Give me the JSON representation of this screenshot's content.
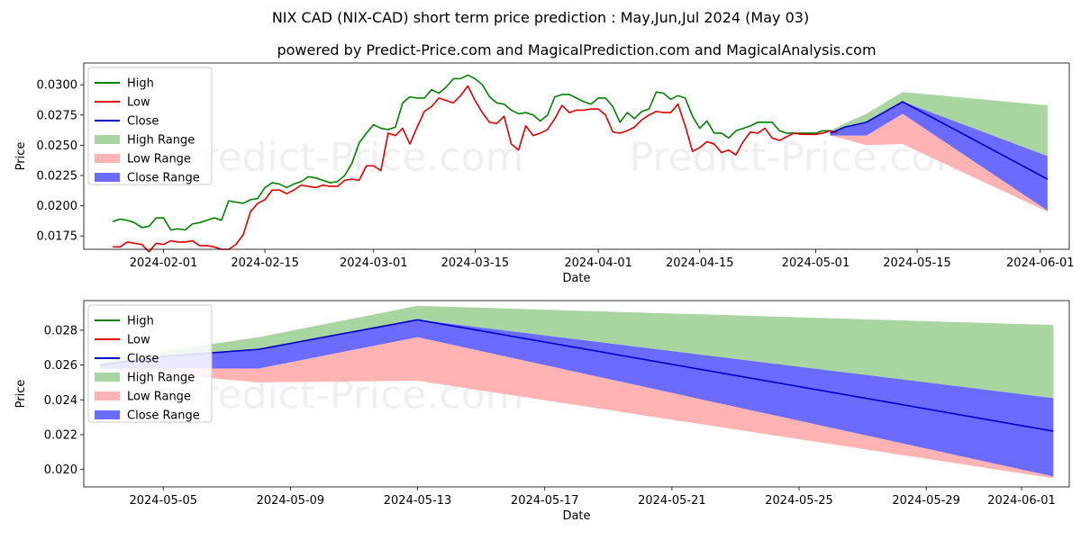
{
  "title": "NIX CAD (NIX-CAD) short term price prediction : May,Jun,Jul 2024 (May 03)",
  "subtitle": "powered by Predict-Price.com and MagicalPrediction.com and MagicalAnalysis.com",
  "watermark": "Predict-Price.com",
  "colors": {
    "high": "#008000",
    "low": "#e00000",
    "close": "#0000cc",
    "high_range": "#a8d5a0",
    "low_range": "#ffb3b3",
    "close_range": "#6b6bff"
  },
  "chart_data": [
    {
      "type": "line",
      "xlabel": "Date",
      "ylabel": "Price",
      "xlim": [
        "2024-01-21",
        "2024-06-05"
      ],
      "ylim": [
        0.0164,
        0.0318
      ],
      "x_ticks": [
        "2024-02-01",
        "2024-02-15",
        "2024-03-01",
        "2024-03-15",
        "2024-04-01",
        "2024-04-15",
        "2024-05-01",
        "2024-05-15",
        "2024-06-01"
      ],
      "y_ticks": [
        "0.0175",
        "0.0200",
        "0.0225",
        "0.0250",
        "0.0275",
        "0.0300"
      ],
      "legend": [
        "High",
        "Low",
        "Close",
        "High Range",
        "Low Range",
        "Close Range"
      ],
      "legend_position": "top-left",
      "history_start": "2024-01-25",
      "high": [
        0.0187,
        0.0189,
        0.0188,
        0.0186,
        0.0182,
        0.0183,
        0.019,
        0.019,
        0.018,
        0.0181,
        0.018,
        0.0185,
        0.0186,
        0.0188,
        0.019,
        0.0188,
        0.0204,
        0.0203,
        0.0202,
        0.0205,
        0.0206,
        0.0215,
        0.0219,
        0.0218,
        0.0215,
        0.0218,
        0.022,
        0.0224,
        0.0223,
        0.0221,
        0.0219,
        0.022,
        0.0225,
        0.0235,
        0.0252,
        0.026,
        0.0267,
        0.0264,
        0.0263,
        0.0265,
        0.0285,
        0.029,
        0.0289,
        0.0289,
        0.0296,
        0.0293,
        0.0298,
        0.0305,
        0.0305,
        0.0308,
        0.0305,
        0.03,
        0.029,
        0.0285,
        0.0284,
        0.0279,
        0.0276,
        0.0277,
        0.0275,
        0.027,
        0.0275,
        0.029,
        0.0292,
        0.0292,
        0.0289,
        0.0286,
        0.0284,
        0.0289,
        0.0289,
        0.0282,
        0.0269,
        0.0277,
        0.0272,
        0.0278,
        0.028,
        0.0294,
        0.0293,
        0.0288,
        0.0291,
        0.0289,
        0.0274,
        0.0264,
        0.027,
        0.026,
        0.026,
        0.0256,
        0.0262,
        0.0264,
        0.0266,
        0.0269,
        0.0269,
        0.0269,
        0.0262,
        0.026,
        0.026,
        0.026,
        0.026,
        0.026,
        0.0262,
        0.0262,
        0.026
      ],
      "low": [
        0.0166,
        0.0166,
        0.017,
        0.0169,
        0.0168,
        0.0162,
        0.0169,
        0.0168,
        0.0171,
        0.017,
        0.017,
        0.0171,
        0.0167,
        0.0167,
        0.0166,
        0.0164,
        0.0164,
        0.0168,
        0.0176,
        0.0195,
        0.0202,
        0.0205,
        0.0213,
        0.0213,
        0.021,
        0.0213,
        0.0217,
        0.0216,
        0.0215,
        0.0217,
        0.0216,
        0.0216,
        0.0221,
        0.0222,
        0.0221,
        0.0233,
        0.0233,
        0.0229,
        0.026,
        0.0258,
        0.0264,
        0.0251,
        0.0265,
        0.0278,
        0.0282,
        0.0289,
        0.0287,
        0.0285,
        0.0291,
        0.0299,
        0.0287,
        0.0277,
        0.0269,
        0.0268,
        0.0274,
        0.0251,
        0.0246,
        0.0266,
        0.0258,
        0.026,
        0.0263,
        0.0272,
        0.0283,
        0.0277,
        0.0279,
        0.0279,
        0.028,
        0.028,
        0.0275,
        0.0261,
        0.026,
        0.0262,
        0.0265,
        0.0271,
        0.0275,
        0.0278,
        0.0277,
        0.0277,
        0.0284,
        0.0266,
        0.0245,
        0.0248,
        0.0253,
        0.0251,
        0.0244,
        0.0246,
        0.0242,
        0.0253,
        0.0261,
        0.026,
        0.0264,
        0.0256,
        0.0254,
        0.0257,
        0.026,
        0.0259,
        0.0259,
        0.0259,
        0.026,
        0.0262,
        0.026
      ],
      "forecast": {
        "dates": [
          "2024-05-03",
          "2024-05-05",
          "2024-05-08",
          "2024-05-13",
          "2024-06-02"
        ],
        "close": [
          0.026,
          0.0265,
          0.0269,
          0.0286,
          0.0222
        ],
        "high_range_upper": [
          0.0262,
          0.0268,
          0.0276,
          0.0294,
          0.0283
        ],
        "high_range_lower": [
          0.026,
          0.0265,
          0.0269,
          0.0286,
          0.0241
        ],
        "close_range_upper": [
          0.026,
          0.0265,
          0.0269,
          0.0286,
          0.0241
        ],
        "close_range_lower": [
          0.0258,
          0.0258,
          0.0258,
          0.0276,
          0.0196
        ],
        "low_range_upper": [
          0.0258,
          0.0258,
          0.0258,
          0.0276,
          0.0196
        ],
        "low_range_lower": [
          0.0258,
          0.0255,
          0.025,
          0.0251,
          0.0195
        ]
      }
    },
    {
      "type": "area",
      "xlabel": "Date",
      "ylabel": "Price",
      "xlim": [
        "2024-05-02.5",
        "2024-06-02.5"
      ],
      "ylim": [
        0.019,
        0.0297
      ],
      "x_ticks": [
        "2024-05-05",
        "2024-05-09",
        "2024-05-13",
        "2024-05-17",
        "2024-05-21",
        "2024-05-25",
        "2024-05-29",
        "2024-06-01"
      ],
      "y_ticks": [
        "0.020",
        "0.022",
        "0.024",
        "0.026",
        "0.028"
      ],
      "legend": [
        "High",
        "Low",
        "Close",
        "High Range",
        "Low Range",
        "Close Range"
      ],
      "legend_position": "top-left",
      "forecast": {
        "dates": [
          "2024-05-03",
          "2024-05-05",
          "2024-05-08",
          "2024-05-13",
          "2024-06-02"
        ],
        "close": [
          0.026,
          0.0265,
          0.0269,
          0.0286,
          0.0222
        ],
        "high_range_upper": [
          0.0262,
          0.0268,
          0.0276,
          0.0294,
          0.0283
        ],
        "high_range_lower": [
          0.026,
          0.0265,
          0.0269,
          0.0286,
          0.0241
        ],
        "close_range_upper": [
          0.026,
          0.0265,
          0.0269,
          0.0286,
          0.0241
        ],
        "close_range_lower": [
          0.0258,
          0.0258,
          0.0258,
          0.0276,
          0.0196
        ],
        "low_range_upper": [
          0.0258,
          0.0258,
          0.0258,
          0.0276,
          0.0196
        ],
        "low_range_lower": [
          0.0258,
          0.0255,
          0.025,
          0.0251,
          0.0195
        ]
      }
    }
  ]
}
